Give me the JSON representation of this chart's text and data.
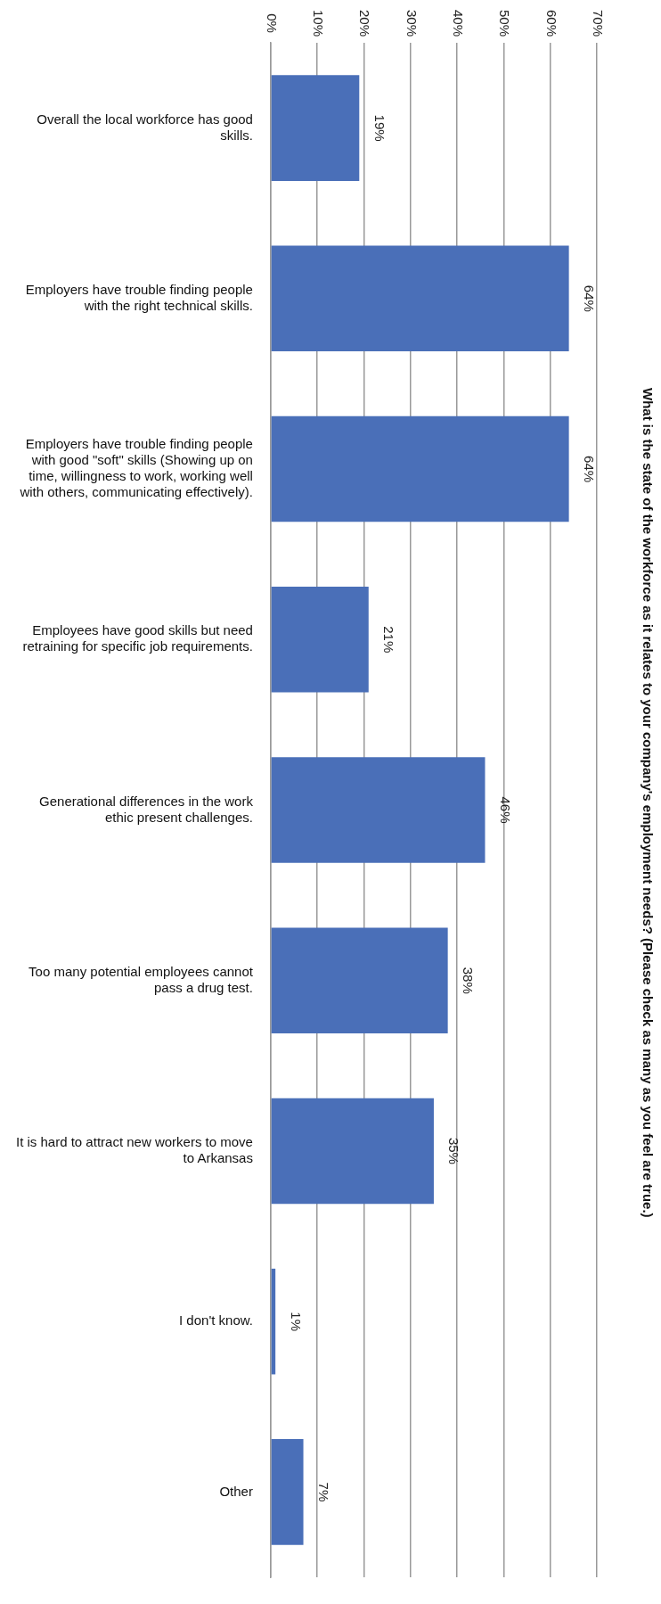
{
  "chart_data": {
    "type": "bar",
    "orientation": "horizontal",
    "title": "What is the state of the workforce as it relates to your company's employment needs? (Please check as many as you feel are true.)",
    "categories": [
      "Overall the local workforce has good skills.",
      "Employers have trouble finding people with the right technical skills.",
      "Employers have trouble finding people with good \"soft\" skills (Showing up on time, willingness to work, working well with others, communicating effectively).",
      "Employees have good skills but need retraining for specific job requirements.",
      "Generational differences in the work ethic present challenges.",
      "Too many potential employees cannot pass a drug test.",
      "It is hard to attract new workers to move to Arkansas",
      "I don't know.",
      "Other"
    ],
    "values": [
      19,
      64,
      64,
      21,
      46,
      38,
      35,
      1,
      7
    ],
    "value_labels": [
      "19%",
      "64%",
      "64%",
      "21%",
      "46%",
      "38%",
      "35%",
      "1%",
      "7%"
    ],
    "color": "#4a6fb8",
    "xlim": [
      0,
      70
    ],
    "xticks": [
      {
        "value": 0,
        "label": "0%"
      },
      {
        "value": 10,
        "label": "10%"
      },
      {
        "value": 20,
        "label": "20%"
      },
      {
        "value": 30,
        "label": "30%"
      },
      {
        "value": 40,
        "label": "40%"
      },
      {
        "value": 50,
        "label": "50%"
      },
      {
        "value": 60,
        "label": "60%"
      },
      {
        "value": 70,
        "label": "70%"
      }
    ],
    "grid": "x",
    "legend": false
  }
}
